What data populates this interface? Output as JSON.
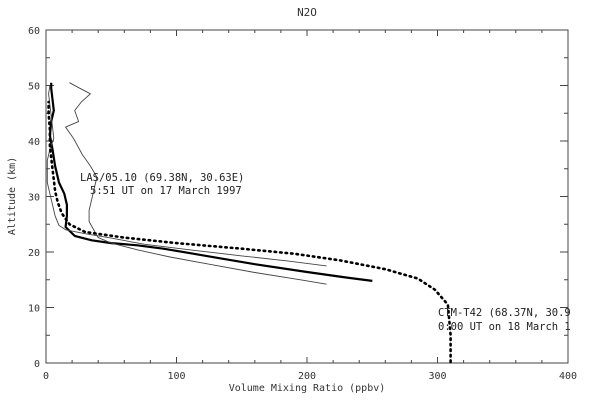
{
  "chart_data": {
    "type": "line",
    "title": "N2O",
    "xlabel": "Volume Mixing Ratio (ppbv)",
    "ylabel": "Altitude (km)",
    "xlim": [
      0,
      400
    ],
    "ylim": [
      0,
      60
    ],
    "x_ticks": [
      "0",
      "100",
      "200",
      "300",
      "400"
    ],
    "y_ticks": [
      "0",
      "10",
      "20",
      "30",
      "40",
      "50",
      "60"
    ],
    "grid": false,
    "annotations": [
      {
        "lines": [
          "LAS/05.10 (69.38N, 30.63E)",
          "5:51 UT on 17 March 1997"
        ]
      },
      {
        "lines": [
          "CTM-T42 (68.37N, 30.9",
          "0:00 UT on 18 March 1"
        ]
      }
    ],
    "series": [
      {
        "style": "solid-thick",
        "points": [
          [
            250,
            14.8
          ],
          [
            230,
            15.4
          ],
          [
            200,
            16.4
          ],
          [
            160,
            17.8
          ],
          [
            130,
            19.0
          ],
          [
            110,
            19.8
          ],
          [
            90,
            20.6
          ],
          [
            70,
            21.2
          ],
          [
            50,
            21.6
          ],
          [
            35,
            22.1
          ],
          [
            22,
            22.9
          ],
          [
            15,
            24.5
          ],
          [
            16,
            26.5
          ],
          [
            16,
            28.5
          ],
          [
            14,
            30.5
          ],
          [
            10,
            32.5
          ],
          [
            7,
            35.5
          ],
          [
            5,
            38.5
          ],
          [
            3,
            41.0
          ],
          [
            4,
            43.5
          ],
          [
            6,
            45.5
          ],
          [
            5,
            47.5
          ],
          [
            4,
            49.5
          ],
          [
            4,
            50.5
          ]
        ]
      },
      {
        "style": "solid-thin-upper",
        "points": [
          [
            215,
            14.2
          ],
          [
            195,
            15.0
          ],
          [
            160,
            16.3
          ],
          [
            125,
            17.8
          ],
          [
            95,
            19.1
          ],
          [
            70,
            20.4
          ],
          [
            50,
            21.6
          ],
          [
            40,
            22.6
          ],
          [
            37,
            23.8
          ],
          [
            33,
            25.5
          ],
          [
            33,
            27.5
          ],
          [
            35,
            29.5
          ],
          [
            37,
            31.5
          ],
          [
            39,
            33.5
          ],
          [
            34,
            35.5
          ],
          [
            28,
            37.5
          ],
          [
            21,
            40.5
          ],
          [
            15,
            42.5
          ],
          [
            25,
            43.5
          ],
          [
            22,
            45.5
          ],
          [
            27,
            47.0
          ],
          [
            34,
            48.5
          ],
          [
            26,
            49.5
          ],
          [
            18,
            50.5
          ]
        ]
      },
      {
        "style": "solid-thin-lower",
        "points": [
          [
            215,
            17.5
          ],
          [
            185,
            18.4
          ],
          [
            150,
            19.3
          ],
          [
            110,
            20.4
          ],
          [
            75,
            21.4
          ],
          [
            50,
            22.5
          ],
          [
            30,
            23.3
          ],
          [
            15,
            24.0
          ],
          [
            10,
            24.8
          ],
          [
            7,
            26.5
          ],
          [
            5,
            28.5
          ],
          [
            3,
            30.5
          ],
          [
            1,
            32.5
          ],
          [
            1,
            34.5
          ],
          [
            1,
            36.5
          ],
          [
            3,
            38.5
          ],
          [
            6,
            40.5
          ],
          [
            5,
            42.5
          ],
          [
            4,
            44.5
          ],
          [
            3,
            46.5
          ],
          [
            2,
            48.5
          ],
          [
            3,
            50.0
          ]
        ]
      },
      {
        "style": "dotted",
        "points": [
          [
            310,
            0.2
          ],
          [
            310,
            5
          ],
          [
            308,
            10.5
          ],
          [
            298,
            13.2
          ],
          [
            285,
            15.2
          ],
          [
            260,
            16.9
          ],
          [
            225,
            18.5
          ],
          [
            190,
            19.7
          ],
          [
            150,
            20.6
          ],
          [
            100,
            21.6
          ],
          [
            60,
            22.6
          ],
          [
            30,
            23.6
          ],
          [
            18,
            25.0
          ],
          [
            12,
            27.0
          ],
          [
            9,
            29.0
          ],
          [
            7,
            31.0
          ],
          [
            6,
            33.0
          ],
          [
            5,
            35.0
          ],
          [
            4,
            37.0
          ],
          [
            3,
            39.0
          ],
          [
            3,
            42.0
          ],
          [
            2,
            45.0
          ],
          [
            2,
            47.0
          ]
        ]
      }
    ]
  }
}
